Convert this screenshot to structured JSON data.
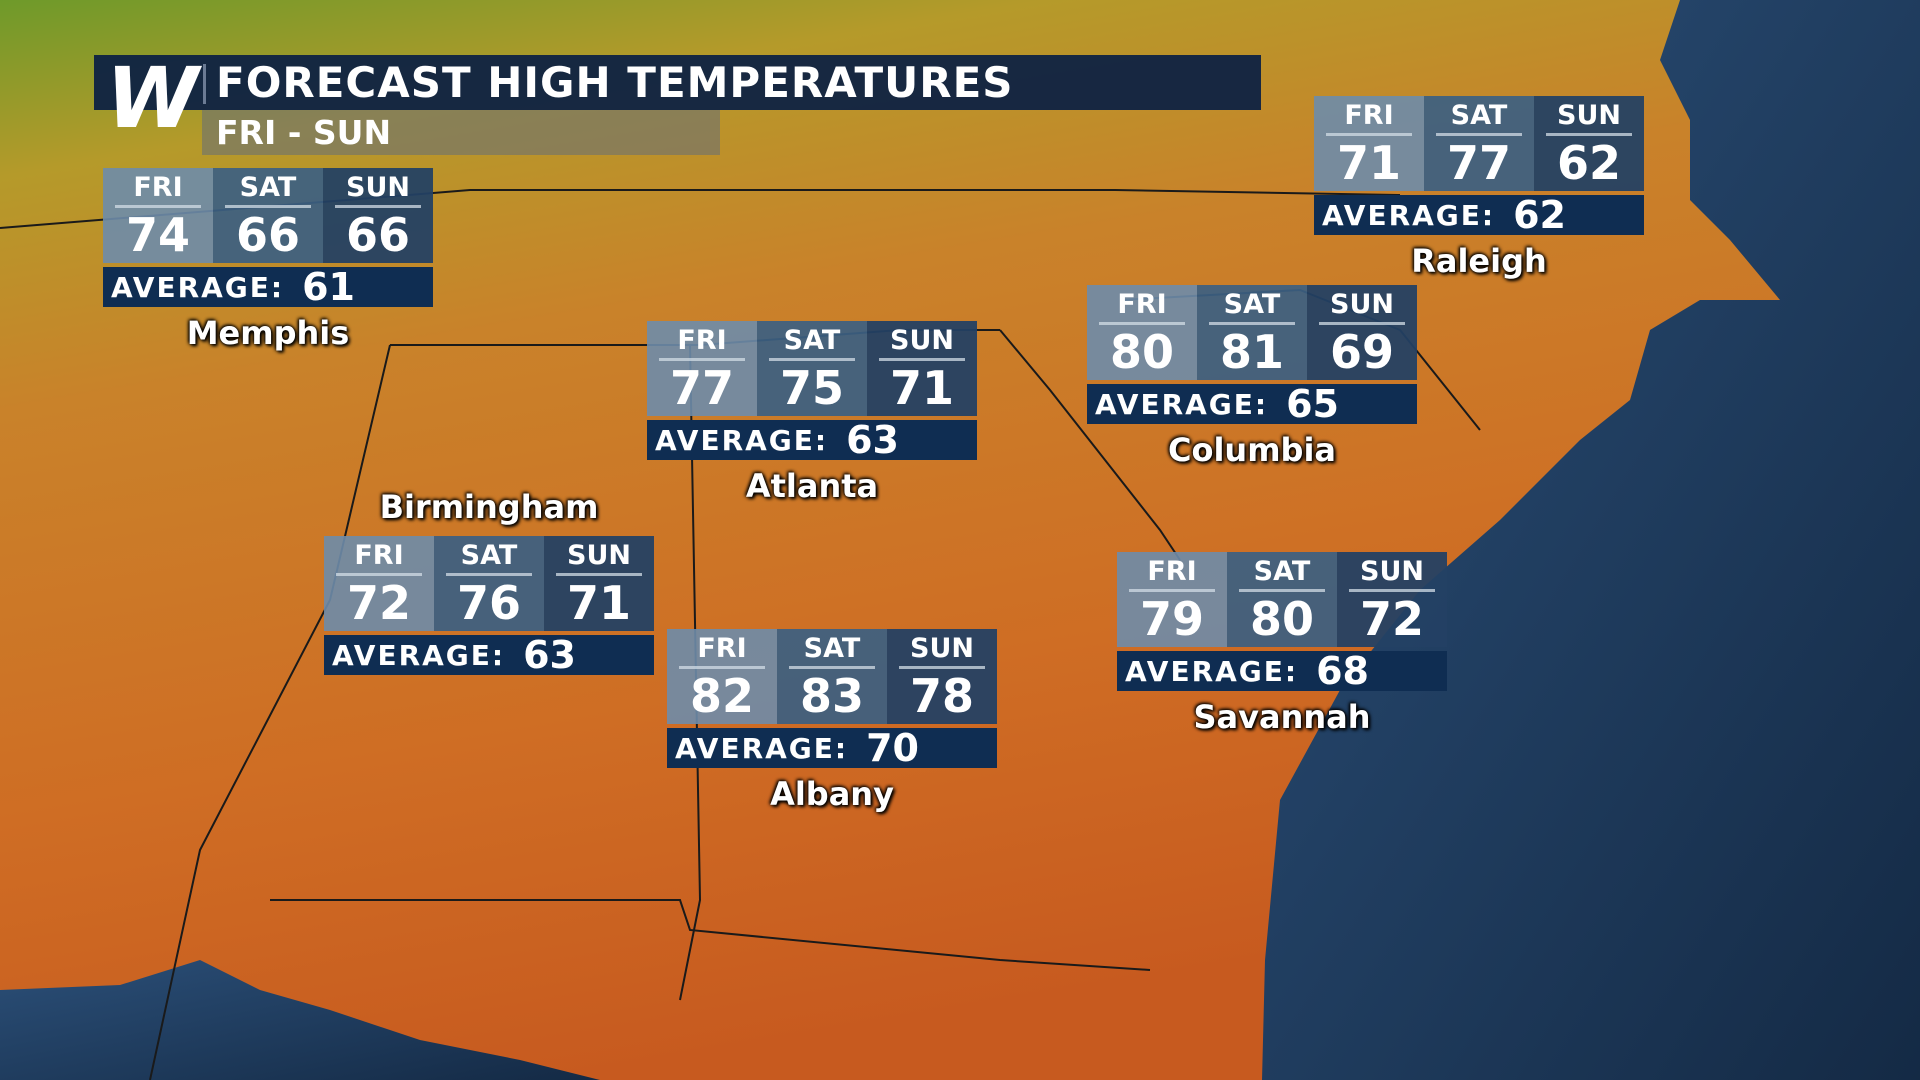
{
  "header": {
    "title": "FORECAST HIGH TEMPERATURES",
    "subtitle": "FRI - SUN",
    "logo": "W"
  },
  "colors": {
    "header_bg": "#0e2242",
    "average_bg": "#0f2d52",
    "land": "#c8701f",
    "ocean": "#1d3553"
  },
  "cities": [
    {
      "name": "Memphis",
      "days": [
        {
          "day": "FRI",
          "high": "74"
        },
        {
          "day": "SAT",
          "high": "66"
        },
        {
          "day": "SUN",
          "high": "66"
        }
      ],
      "average_label": "AVERAGE:",
      "average": "61"
    },
    {
      "name": "Atlanta",
      "days": [
        {
          "day": "FRI",
          "high": "77"
        },
        {
          "day": "SAT",
          "high": "75"
        },
        {
          "day": "SUN",
          "high": "71"
        }
      ],
      "average_label": "AVERAGE:",
      "average": "63"
    },
    {
      "name": "Birmingham",
      "days": [
        {
          "day": "FRI",
          "high": "72"
        },
        {
          "day": "SAT",
          "high": "76"
        },
        {
          "day": "SUN",
          "high": "71"
        }
      ],
      "average_label": "AVERAGE:",
      "average": "63"
    },
    {
      "name": "Albany",
      "days": [
        {
          "day": "FRI",
          "high": "82"
        },
        {
          "day": "SAT",
          "high": "83"
        },
        {
          "day": "SUN",
          "high": "78"
        }
      ],
      "average_label": "AVERAGE:",
      "average": "70"
    },
    {
      "name": "Columbia",
      "days": [
        {
          "day": "FRI",
          "high": "80"
        },
        {
          "day": "SAT",
          "high": "81"
        },
        {
          "day": "SUN",
          "high": "69"
        }
      ],
      "average_label": "AVERAGE:",
      "average": "65"
    },
    {
      "name": "Savannah",
      "days": [
        {
          "day": "FRI",
          "high": "79"
        },
        {
          "day": "SAT",
          "high": "80"
        },
        {
          "day": "SUN",
          "high": "72"
        }
      ],
      "average_label": "AVERAGE:",
      "average": "68"
    },
    {
      "name": "Raleigh",
      "days": [
        {
          "day": "FRI",
          "high": "71"
        },
        {
          "day": "SAT",
          "high": "77"
        },
        {
          "day": "SUN",
          "high": "62"
        }
      ],
      "average_label": "AVERAGE:",
      "average": "62"
    }
  ]
}
